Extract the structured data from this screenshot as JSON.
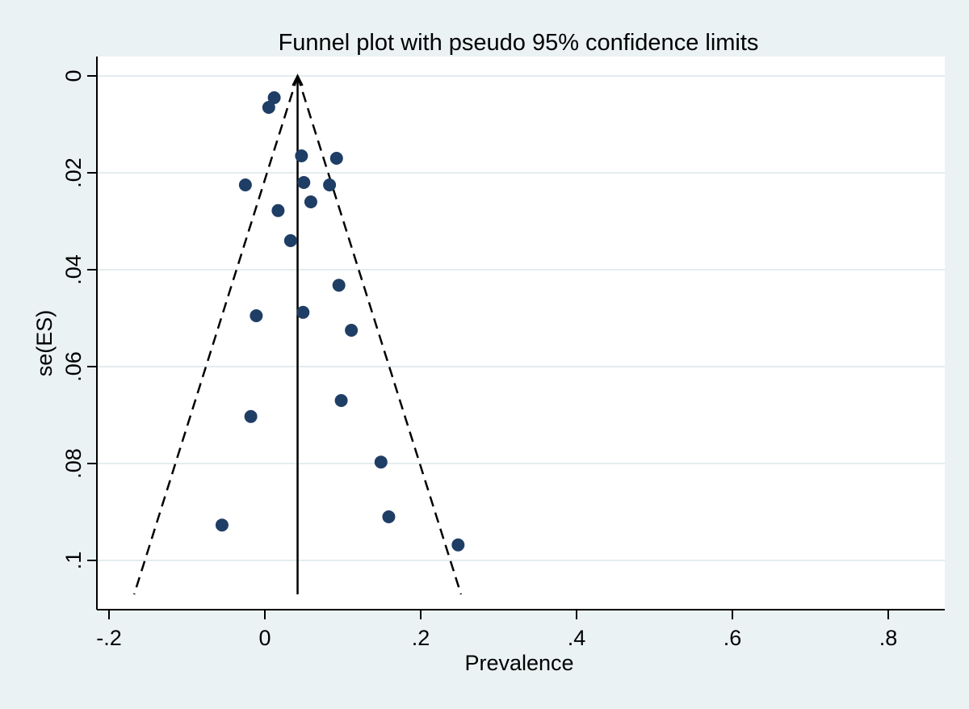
{
  "chart_data": {
    "type": "scatter",
    "title": "Funnel plot with pseudo 95% confidence limits",
    "xlabel": "Prevalence",
    "ylabel": "se(ES)",
    "xlim": [
      -0.2,
      0.88
    ],
    "ylim": [
      0,
      0.107
    ],
    "y_inverted": true,
    "x_ticks": [
      -0.2,
      0,
      0.2,
      0.4,
      0.6,
      0.8
    ],
    "x_tick_labels": [
      "-.2",
      "0",
      ".2",
      ".4",
      ".6",
      ".8"
    ],
    "y_ticks": [
      0,
      0.02,
      0.04,
      0.06,
      0.08,
      0.1
    ],
    "y_tick_labels": [
      "0",
      ".02",
      ".04",
      ".06",
      ".08",
      ".1"
    ],
    "grid": "horizontal",
    "pooled_estimate": 0.042,
    "ci_level": 0.95,
    "ci_z": 1.96,
    "se_max": 0.107,
    "colors": {
      "background": "#eaf2f3",
      "plot_area": "#ffffff",
      "grid": "#e4ecee",
      "point": "#1f3e66",
      "line": "#000000"
    },
    "series": [
      {
        "name": "Studies",
        "points": [
          {
            "x": 0.012,
            "y": 0.0045
          },
          {
            "x": 0.005,
            "y": 0.0065
          },
          {
            "x": 0.047,
            "y": 0.0165
          },
          {
            "x": 0.092,
            "y": 0.017
          },
          {
            "x": -0.025,
            "y": 0.0225
          },
          {
            "x": 0.05,
            "y": 0.022
          },
          {
            "x": 0.083,
            "y": 0.0225
          },
          {
            "x": 0.059,
            "y": 0.026
          },
          {
            "x": 0.017,
            "y": 0.0278
          },
          {
            "x": 0.033,
            "y": 0.034
          },
          {
            "x": 0.095,
            "y": 0.0432
          },
          {
            "x": -0.011,
            "y": 0.0495
          },
          {
            "x": 0.049,
            "y": 0.0488
          },
          {
            "x": 0.111,
            "y": 0.0525
          },
          {
            "x": 0.098,
            "y": 0.067
          },
          {
            "x": -0.018,
            "y": 0.0703
          },
          {
            "x": 0.149,
            "y": 0.0797
          },
          {
            "x": 0.159,
            "y": 0.091
          },
          {
            "x": -0.055,
            "y": 0.0927
          },
          {
            "x": 0.248,
            "y": 0.0968
          }
        ]
      }
    ]
  }
}
